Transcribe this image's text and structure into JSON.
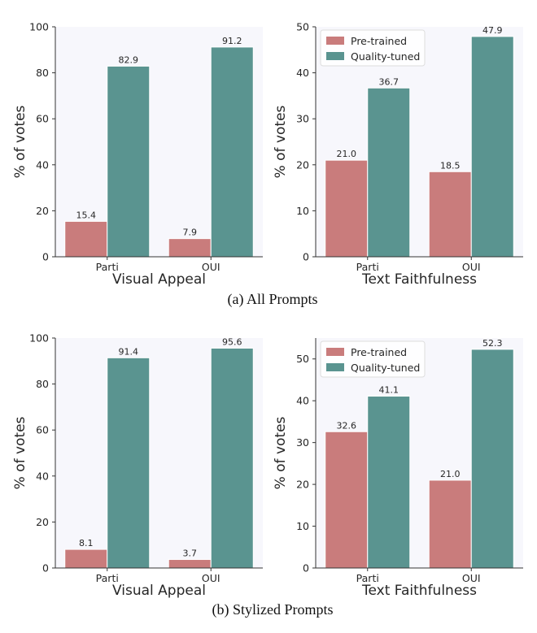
{
  "colors": {
    "pretrained": "#c97c7c",
    "quality": "#5a9490",
    "plot_bg": "#f7f7fc",
    "axis": "#333333"
  },
  "captions": [
    "(a) All Prompts",
    "(b) Stylized Prompts"
  ],
  "chart_data": [
    {
      "type": "bar",
      "panel": "a-left",
      "categories": [
        "Parti",
        "OUI"
      ],
      "series": [
        {
          "key": "pretrained",
          "values": [
            15.4,
            7.9
          ]
        },
        {
          "key": "quality",
          "values": [
            82.9,
            91.2
          ]
        }
      ],
      "data_labels": [
        [
          "15.4",
          "7.9"
        ],
        [
          "82.9",
          "91.2"
        ]
      ],
      "ylim": [
        0,
        100
      ],
      "yticks": [
        0,
        20,
        40,
        60,
        80,
        100
      ],
      "xlabel": "Visual Appeal",
      "ylabel": "% of votes",
      "legend": null
    },
    {
      "type": "bar",
      "panel": "a-right",
      "categories": [
        "Parti",
        "OUI"
      ],
      "series": [
        {
          "key": "pretrained",
          "name": "Pre-trained",
          "values": [
            21.0,
            18.5
          ]
        },
        {
          "key": "quality",
          "name": "Quality-tuned",
          "values": [
            36.7,
            47.9
          ]
        }
      ],
      "data_labels": [
        [
          "21.0",
          "18.5"
        ],
        [
          "36.7",
          "47.9"
        ]
      ],
      "ylim": [
        0,
        50
      ],
      "yticks": [
        0,
        10,
        20,
        30,
        40,
        50
      ],
      "xlabel": "Text Faithfulness",
      "ylabel": "% of votes",
      "legend": "top-left"
    },
    {
      "type": "bar",
      "panel": "b-left",
      "categories": [
        "Parti",
        "OUI"
      ],
      "series": [
        {
          "key": "pretrained",
          "values": [
            8.1,
            3.7
          ]
        },
        {
          "key": "quality",
          "values": [
            91.4,
            95.6
          ]
        }
      ],
      "data_labels": [
        [
          "8.1",
          "3.7"
        ],
        [
          "91.4",
          "95.6"
        ]
      ],
      "ylim": [
        0,
        100
      ],
      "yticks": [
        0,
        20,
        40,
        60,
        80,
        100
      ],
      "xlabel": "Visual Appeal",
      "ylabel": "% of votes",
      "legend": null
    },
    {
      "type": "bar",
      "panel": "b-right",
      "categories": [
        "Parti",
        "OUI"
      ],
      "series": [
        {
          "key": "pretrained",
          "name": "Pre-trained",
          "values": [
            32.6,
            21.0
          ]
        },
        {
          "key": "quality",
          "name": "Quality-tuned",
          "values": [
            41.1,
            52.3
          ]
        }
      ],
      "data_labels": [
        [
          "32.6",
          "21.0"
        ],
        [
          "41.1",
          "52.3"
        ]
      ],
      "ylim": [
        0,
        55
      ],
      "yticks": [
        0,
        10,
        20,
        30,
        40,
        50
      ],
      "xlabel": "Text Faithfulness",
      "ylabel": "% of votes",
      "legend": "top-left"
    }
  ]
}
